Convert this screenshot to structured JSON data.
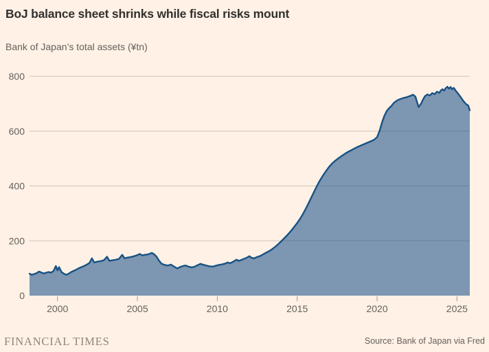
{
  "header": {
    "title": "BoJ balance sheet shrinks while fiscal risks mount",
    "subtitle": "Bank of Japan’s total assets (¥tn)"
  },
  "footer": {
    "brand": "FINANCIAL TIMES",
    "source": "Source: Bank of Japan via Fred"
  },
  "colors": {
    "background": "#FFF1E5",
    "line": "#175283",
    "fill": "rgba(31,84,140,0.58)",
    "grid": "#CEC2B6",
    "tick": "#A0978C",
    "title": "#33302E",
    "muted": "#66605C",
    "brand": "#8F8579"
  },
  "chart_data": {
    "type": "area",
    "title": "BoJ balance sheet shrinks while fiscal risks mount",
    "subtitle": "Bank of Japan’s total assets (¥tn)",
    "xlabel": "",
    "ylabel": "¥tn",
    "xlim": [
      1998.25,
      2025.8
    ],
    "ylim": [
      0,
      800
    ],
    "x_ticks": [
      2000,
      2005,
      2010,
      2015,
      2020,
      2025
    ],
    "y_ticks": [
      0,
      200,
      400,
      600,
      800
    ],
    "grid": "horizontal",
    "legend": "none",
    "series": [
      {
        "name": "Bank of Japan total assets (¥tn)",
        "points": [
          [
            1998.25,
            80
          ],
          [
            1998.4,
            76
          ],
          [
            1998.55,
            79
          ],
          [
            1998.7,
            82
          ],
          [
            1998.85,
            88
          ],
          [
            1999.0,
            84
          ],
          [
            1999.15,
            81
          ],
          [
            1999.3,
            84
          ],
          [
            1999.45,
            86
          ],
          [
            1999.6,
            84
          ],
          [
            1999.75,
            90
          ],
          [
            1999.9,
            108
          ],
          [
            2000.0,
            92
          ],
          [
            2000.1,
            104
          ],
          [
            2000.25,
            86
          ],
          [
            2000.4,
            80
          ],
          [
            2000.55,
            76
          ],
          [
            2000.7,
            80
          ],
          [
            2000.85,
            86
          ],
          [
            2001.0,
            90
          ],
          [
            2001.15,
            94
          ],
          [
            2001.3,
            99
          ],
          [
            2001.5,
            104
          ],
          [
            2001.7,
            109
          ],
          [
            2001.85,
            114
          ],
          [
            2002.0,
            119
          ],
          [
            2002.15,
            136
          ],
          [
            2002.3,
            121
          ],
          [
            2002.5,
            124
          ],
          [
            2002.7,
            126
          ],
          [
            2002.9,
            129
          ],
          [
            2003.1,
            142
          ],
          [
            2003.25,
            127
          ],
          [
            2003.45,
            129
          ],
          [
            2003.65,
            131
          ],
          [
            2003.85,
            134
          ],
          [
            2004.05,
            149
          ],
          [
            2004.2,
            136
          ],
          [
            2004.4,
            139
          ],
          [
            2004.6,
            141
          ],
          [
            2004.8,
            144
          ],
          [
            2005.0,
            148
          ],
          [
            2005.15,
            152
          ],
          [
            2005.3,
            147
          ],
          [
            2005.5,
            149
          ],
          [
            2005.7,
            151
          ],
          [
            2005.9,
            156
          ],
          [
            2006.05,
            151
          ],
          [
            2006.2,
            142
          ],
          [
            2006.35,
            128
          ],
          [
            2006.5,
            117
          ],
          [
            2006.7,
            112
          ],
          [
            2006.9,
            110
          ],
          [
            2007.1,
            113
          ],
          [
            2007.3,
            106
          ],
          [
            2007.5,
            99
          ],
          [
            2007.65,
            104
          ],
          [
            2007.8,
            107
          ],
          [
            2008.0,
            110
          ],
          [
            2008.2,
            106
          ],
          [
            2008.4,
            103
          ],
          [
            2008.6,
            106
          ],
          [
            2008.8,
            112
          ],
          [
            2008.95,
            116
          ],
          [
            2009.1,
            113
          ],
          [
            2009.3,
            110
          ],
          [
            2009.5,
            107
          ],
          [
            2009.7,
            106
          ],
          [
            2009.9,
            109
          ],
          [
            2010.1,
            112
          ],
          [
            2010.3,
            114
          ],
          [
            2010.5,
            117
          ],
          [
            2010.65,
            121
          ],
          [
            2010.8,
            118
          ],
          [
            2011.0,
            124
          ],
          [
            2011.2,
            131
          ],
          [
            2011.35,
            127
          ],
          [
            2011.5,
            130
          ],
          [
            2011.7,
            135
          ],
          [
            2011.9,
            140
          ],
          [
            2012.0,
            144
          ],
          [
            2012.15,
            138
          ],
          [
            2012.3,
            136
          ],
          [
            2012.5,
            141
          ],
          [
            2012.7,
            145
          ],
          [
            2012.85,
            150
          ],
          [
            2013.0,
            155
          ],
          [
            2013.2,
            161
          ],
          [
            2013.4,
            168
          ],
          [
            2013.6,
            177
          ],
          [
            2013.8,
            187
          ],
          [
            2014.0,
            198
          ],
          [
            2014.2,
            210
          ],
          [
            2014.4,
            222
          ],
          [
            2014.6,
            235
          ],
          [
            2014.8,
            250
          ],
          [
            2015.0,
            265
          ],
          [
            2015.2,
            282
          ],
          [
            2015.4,
            302
          ],
          [
            2015.6,
            324
          ],
          [
            2015.8,
            348
          ],
          [
            2016.0,
            372
          ],
          [
            2016.2,
            396
          ],
          [
            2016.4,
            418
          ],
          [
            2016.6,
            437
          ],
          [
            2016.8,
            454
          ],
          [
            2017.0,
            470
          ],
          [
            2017.2,
            483
          ],
          [
            2017.4,
            493
          ],
          [
            2017.6,
            502
          ],
          [
            2017.8,
            510
          ],
          [
            2018.0,
            518
          ],
          [
            2018.2,
            525
          ],
          [
            2018.4,
            531
          ],
          [
            2018.6,
            537
          ],
          [
            2018.8,
            543
          ],
          [
            2019.0,
            548
          ],
          [
            2019.2,
            553
          ],
          [
            2019.4,
            558
          ],
          [
            2019.6,
            563
          ],
          [
            2019.8,
            568
          ],
          [
            2020.0,
            578
          ],
          [
            2020.15,
            600
          ],
          [
            2020.3,
            630
          ],
          [
            2020.45,
            655
          ],
          [
            2020.6,
            673
          ],
          [
            2020.75,
            684
          ],
          [
            2020.9,
            692
          ],
          [
            2021.05,
            703
          ],
          [
            2021.2,
            710
          ],
          [
            2021.35,
            715
          ],
          [
            2021.5,
            718
          ],
          [
            2021.65,
            721
          ],
          [
            2021.8,
            723
          ],
          [
            2021.95,
            726
          ],
          [
            2022.1,
            729
          ],
          [
            2022.25,
            733
          ],
          [
            2022.4,
            726
          ],
          [
            2022.5,
            706
          ],
          [
            2022.6,
            688
          ],
          [
            2022.75,
            700
          ],
          [
            2022.9,
            718
          ],
          [
            2023.0,
            728
          ],
          [
            2023.15,
            734
          ],
          [
            2023.3,
            730
          ],
          [
            2023.45,
            739
          ],
          [
            2023.6,
            735
          ],
          [
            2023.75,
            744
          ],
          [
            2023.9,
            740
          ],
          [
            2024.0,
            749
          ],
          [
            2024.1,
            753
          ],
          [
            2024.2,
            748
          ],
          [
            2024.3,
            757
          ],
          [
            2024.4,
            762
          ],
          [
            2024.5,
            755
          ],
          [
            2024.6,
            761
          ],
          [
            2024.7,
            753
          ],
          [
            2024.8,
            758
          ],
          [
            2024.9,
            749
          ],
          [
            2025.0,
            742
          ],
          [
            2025.1,
            734
          ],
          [
            2025.2,
            727
          ],
          [
            2025.3,
            718
          ],
          [
            2025.4,
            710
          ],
          [
            2025.5,
            703
          ],
          [
            2025.6,
            697
          ],
          [
            2025.7,
            694
          ],
          [
            2025.8,
            676
          ]
        ]
      }
    ]
  }
}
